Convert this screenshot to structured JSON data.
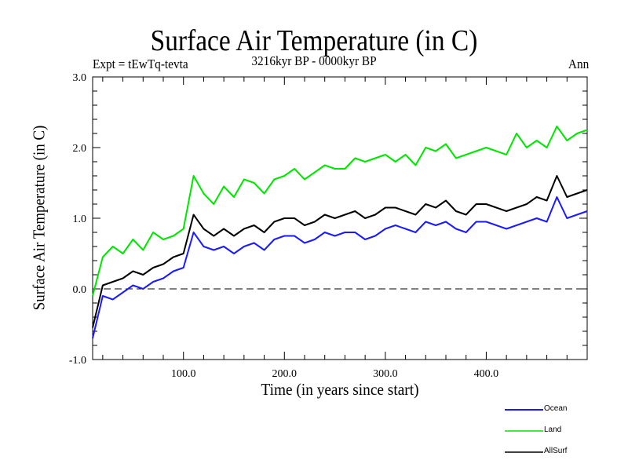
{
  "header": {
    "title": "Surface Air Temperature (in C)",
    "subtitle": "3216kyr BP - 0000kyr BP",
    "experiment": "Expt = tEwTq-tevta",
    "season": "Ann"
  },
  "chart_data": {
    "type": "line",
    "title": "Surface Air Temperature (in C)",
    "subtitle": "3216kyr BP - 0000kyr BP",
    "xlabel": "Time (in years since start)",
    "ylabel": "Surface Air Temperature (in C)",
    "xlim": [
      10,
      500
    ],
    "ylim": [
      -1.0,
      3.0
    ],
    "x_ticks": [
      100,
      200,
      300,
      400
    ],
    "x_tick_labels": [
      "100.0",
      "200.0",
      "300.0",
      "400.0"
    ],
    "y_ticks": [
      -1.0,
      0.0,
      1.0,
      2.0,
      3.0
    ],
    "y_tick_labels": [
      "-1.0",
      "0.0",
      "1.0",
      "2.0",
      "3.0"
    ],
    "reference_line": {
      "y": 0.0,
      "style": "dashed"
    },
    "grid": false,
    "legend_position": "bottom-right",
    "x": [
      10,
      20,
      30,
      40,
      50,
      60,
      70,
      80,
      90,
      100,
      110,
      120,
      130,
      140,
      150,
      160,
      170,
      180,
      190,
      200,
      210,
      220,
      230,
      240,
      250,
      260,
      270,
      280,
      290,
      300,
      310,
      320,
      330,
      340,
      350,
      360,
      370,
      380,
      390,
      400,
      410,
      420,
      430,
      440,
      450,
      460,
      470,
      480,
      490,
      500
    ],
    "series": [
      {
        "name": "Ocean",
        "color": "#1a1aff",
        "values": [
          -0.7,
          -0.1,
          -0.15,
          -0.05,
          0.05,
          0.0,
          0.1,
          0.15,
          0.25,
          0.3,
          0.8,
          0.6,
          0.55,
          0.6,
          0.5,
          0.6,
          0.65,
          0.55,
          0.7,
          0.75,
          0.75,
          0.65,
          0.7,
          0.8,
          0.75,
          0.8,
          0.8,
          0.7,
          0.75,
          0.85,
          0.9,
          0.85,
          0.8,
          0.95,
          0.9,
          0.95,
          0.85,
          0.8,
          0.95,
          0.95,
          0.9,
          0.85,
          0.9,
          0.95,
          1.0,
          0.95,
          1.3,
          1.0,
          1.05,
          1.1
        ]
      },
      {
        "name": "Land",
        "color": "#00e600",
        "values": [
          -0.1,
          0.45,
          0.6,
          0.5,
          0.7,
          0.55,
          0.8,
          0.7,
          0.75,
          0.85,
          1.6,
          1.35,
          1.2,
          1.45,
          1.3,
          1.55,
          1.5,
          1.35,
          1.55,
          1.6,
          1.7,
          1.55,
          1.65,
          1.75,
          1.7,
          1.7,
          1.85,
          1.8,
          1.85,
          1.9,
          1.8,
          1.9,
          1.75,
          2.0,
          1.95,
          2.05,
          1.85,
          1.9,
          1.95,
          2.0,
          1.95,
          1.9,
          2.2,
          2.0,
          2.1,
          2.0,
          2.3,
          2.1,
          2.2,
          2.25
        ]
      },
      {
        "name": "AllSurf",
        "color": "#000000",
        "values": [
          -0.55,
          0.05,
          0.1,
          0.15,
          0.25,
          0.2,
          0.3,
          0.35,
          0.45,
          0.5,
          1.05,
          0.85,
          0.75,
          0.85,
          0.75,
          0.85,
          0.9,
          0.8,
          0.95,
          1.0,
          1.0,
          0.9,
          0.95,
          1.05,
          1.0,
          1.05,
          1.1,
          1.0,
          1.05,
          1.15,
          1.15,
          1.1,
          1.05,
          1.2,
          1.15,
          1.25,
          1.1,
          1.05,
          1.2,
          1.2,
          1.15,
          1.1,
          1.15,
          1.2,
          1.3,
          1.25,
          1.6,
          1.3,
          1.35,
          1.4
        ]
      }
    ]
  },
  "legend": [
    {
      "label": "Ocean",
      "color": "#1a1aff"
    },
    {
      "label": "Land",
      "color": "#00e600"
    },
    {
      "label": "AllSurf",
      "color": "#000000"
    }
  ]
}
